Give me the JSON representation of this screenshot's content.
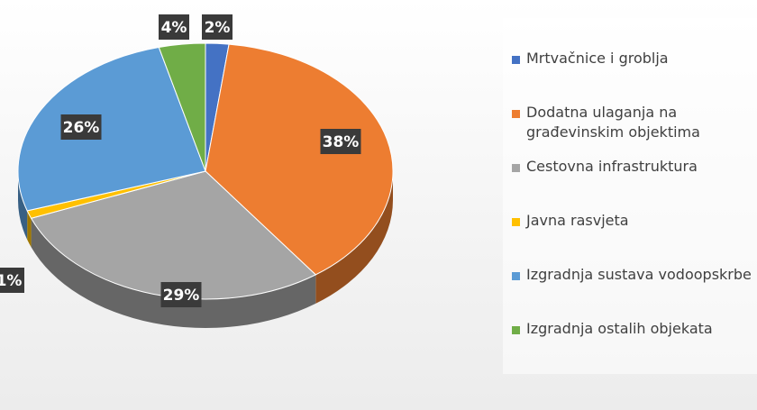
{
  "chart_data": {
    "type": "pie",
    "categories": [
      "Mrtvačnice i groblja",
      "Dodatna ulaganja na građevinskim objektima",
      "Cestovna infrastruktura",
      "Javna rasvjeta",
      "Izgradnja sustava vodoopskrbe",
      "Izgradnja ostalih objekata"
    ],
    "values": [
      2,
      38,
      29,
      1,
      26,
      4
    ],
    "data_labels": [
      "2%",
      "38%",
      "29%",
      "1%",
      "26%",
      "4%"
    ],
    "colors": [
      "#4472c4",
      "#ed7d31",
      "#a5a5a5",
      "#ffc000",
      "#5b9bd5",
      "#70ad47"
    ],
    "legend_position": "right",
    "style": "3d"
  },
  "legend": {
    "items": [
      {
        "label": "Mrtvačnice i groblja",
        "color": "#4472c4"
      },
      {
        "label": "Dodatna ulaganja na građevinskim objektima",
        "color": "#ed7d31"
      },
      {
        "label": "Cestovna infrastruktura",
        "color": "#a5a5a5"
      },
      {
        "label": "Javna rasvjeta",
        "color": "#ffc000"
      },
      {
        "label": "Izgradnja sustava vodoopskrbe",
        "color": "#5b9bd5"
      },
      {
        "label": "Izgradnja ostalih objekata",
        "color": "#70ad47"
      }
    ]
  }
}
